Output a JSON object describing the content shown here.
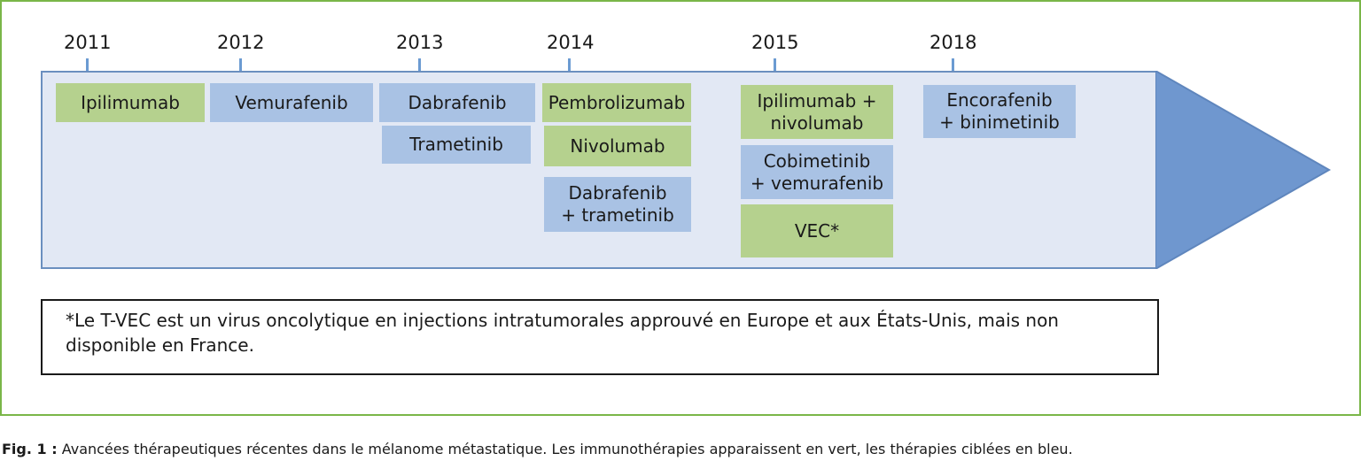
{
  "timeline": {
    "years": [
      {
        "label": "2011"
      },
      {
        "label": "2012"
      },
      {
        "label": "2013"
      },
      {
        "label": "2014"
      },
      {
        "label": "2015"
      },
      {
        "label": "2018"
      }
    ],
    "colors": {
      "immunotherapy": "#b5d18e",
      "targeted": "#a9c2e4",
      "band": "#e2e8f4",
      "arrow": "#6f97cf",
      "frame": "#7ab648"
    },
    "therapies": [
      {
        "label": "Ipilimumab",
        "type": "immunotherapy",
        "year": "2011"
      },
      {
        "label": "Vemurafenib",
        "type": "targeted",
        "year": "2012"
      },
      {
        "label": "Dabrafenib",
        "type": "targeted",
        "year": "2013"
      },
      {
        "label": "Trametinib",
        "type": "targeted",
        "year": "2013"
      },
      {
        "label": "Pembrolizumab",
        "type": "immunotherapy",
        "year": "2014"
      },
      {
        "label": "Nivolumab",
        "type": "immunotherapy",
        "year": "2014"
      },
      {
        "label": "Dabrafenib\n+ trametinib",
        "type": "targeted",
        "year": "2014"
      },
      {
        "label": "Ipilimumab +\nnivolumab",
        "type": "immunotherapy",
        "year": "2015"
      },
      {
        "label": "Cobimetinib\n+ vemurafenib",
        "type": "targeted",
        "year": "2015"
      },
      {
        "label": "VEC*",
        "type": "immunotherapy",
        "year": "2015"
      },
      {
        "label": "Encorafenib\n+ binimetinib",
        "type": "targeted",
        "year": "2018"
      }
    ]
  },
  "footnote": "*Le T-VEC est un virus oncolytique en injections intratumorales approuvé en Europe et aux États-Unis, mais non disponible en France.",
  "caption": {
    "prefix": "Fig. 1 :",
    "text": " Avancées thérapeutiques récentes dans le mélanome métastatique. Les immunothérapies apparaissent en vert, les thérapies ciblées en bleu."
  }
}
